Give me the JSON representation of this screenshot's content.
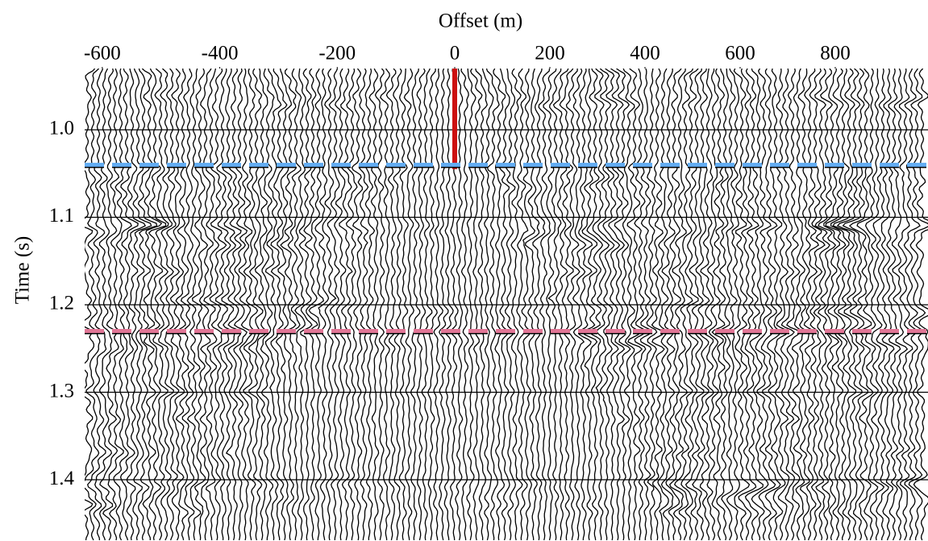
{
  "chart_data": {
    "type": "wiggle",
    "x_label": "Offset (m)",
    "y_label": "Time (s)",
    "xlim": [
      -630,
      995
    ],
    "xticks": [
      -600,
      -400,
      -200,
      0,
      200,
      400,
      600,
      800
    ],
    "ylim": [
      0.93,
      1.47
    ],
    "yticks": [
      {
        "value": 1.0,
        "label": "1.0"
      },
      {
        "value": 1.1,
        "label": "1.1"
      },
      {
        "value": 1.2,
        "label": "1.2"
      },
      {
        "value": 1.3,
        "label": "1.3"
      },
      {
        "value": 1.4,
        "label": "1.4"
      }
    ],
    "grid": true,
    "reference_lines": [
      {
        "axis": "x",
        "value": 0,
        "to": 1.045,
        "color": "#cc1111",
        "dashed": false
      },
      {
        "axis": "y",
        "value": 1.04,
        "color": "#62acf2",
        "dashed": true
      },
      {
        "axis": "y",
        "value": 1.23,
        "color": "#e07595",
        "dashed": true
      }
    ]
  }
}
